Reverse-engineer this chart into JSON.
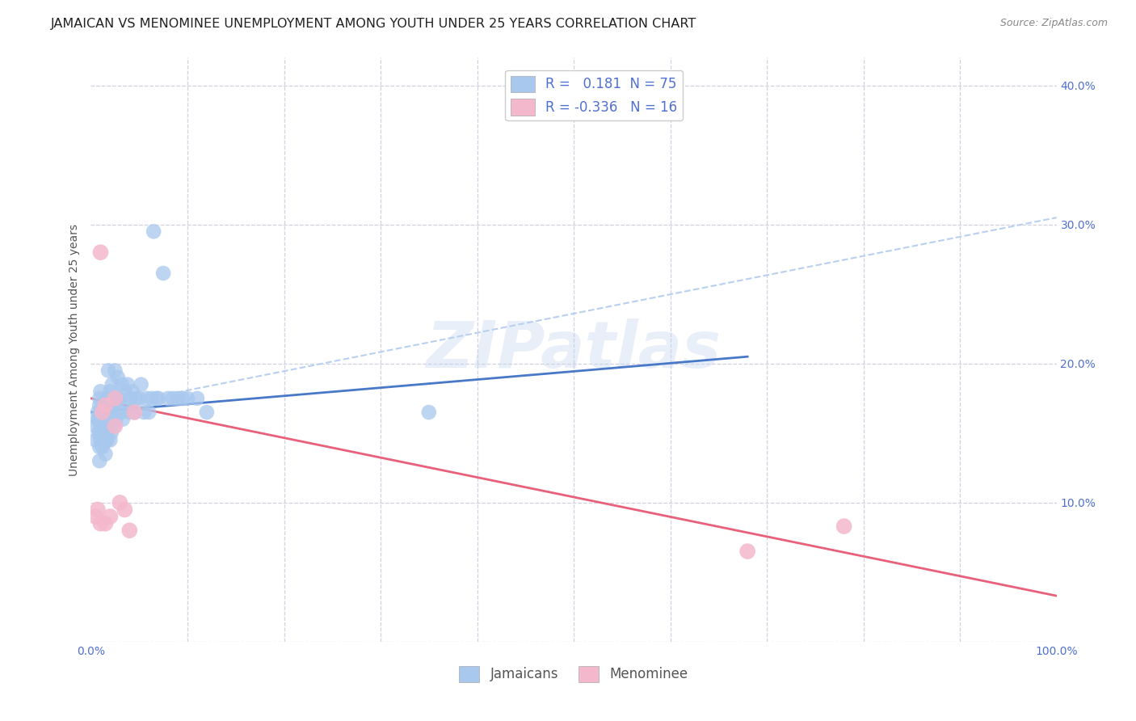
{
  "title": "JAMAICAN VS MENOMINEE UNEMPLOYMENT AMONG YOUTH UNDER 25 YEARS CORRELATION CHART",
  "source": "Source: ZipAtlas.com",
  "ylabel": "Unemployment Among Youth under 25 years",
  "watermark": "ZIPatlas",
  "xlim": [
    0.0,
    1.0
  ],
  "ylim": [
    0.0,
    0.42
  ],
  "xticks": [
    0.0,
    0.1,
    0.2,
    0.3,
    0.4,
    0.5,
    0.6,
    0.7,
    0.8,
    0.9,
    1.0
  ],
  "xticklabels": [
    "0.0%",
    "",
    "",
    "",
    "",
    "",
    "",
    "",
    "",
    "",
    "100.0%"
  ],
  "yticks": [
    0.0,
    0.1,
    0.2,
    0.3,
    0.4
  ],
  "yticklabels": [
    "",
    "10.0%",
    "20.0%",
    "30.0%",
    "40.0%"
  ],
  "legend_blue_label": "R =   0.181  N = 75",
  "legend_pink_label": "R = -0.336   N = 16",
  "blue_color": "#a8c8ee",
  "pink_color": "#f4b8cc",
  "blue_line_color": "#4878c8",
  "pink_line_color": "#e8607a",
  "dashed_line_color": "#b8d0f0",
  "jamaicans_x": [
    0.005,
    0.005,
    0.007,
    0.007,
    0.008,
    0.008,
    0.009,
    0.009,
    0.009,
    0.009,
    0.01,
    0.01,
    0.01,
    0.01,
    0.01,
    0.012,
    0.012,
    0.012,
    0.013,
    0.013,
    0.015,
    0.015,
    0.015,
    0.015,
    0.016,
    0.016,
    0.017,
    0.017,
    0.018,
    0.018,
    0.019,
    0.02,
    0.02,
    0.02,
    0.021,
    0.021,
    0.022,
    0.022,
    0.023,
    0.024,
    0.025,
    0.025,
    0.026,
    0.027,
    0.028,
    0.03,
    0.031,
    0.032,
    0.033,
    0.035,
    0.037,
    0.038,
    0.04,
    0.041,
    0.043,
    0.045,
    0.047,
    0.05,
    0.052,
    0.055,
    0.058,
    0.06,
    0.063,
    0.065,
    0.068,
    0.07,
    0.075,
    0.08,
    0.085,
    0.09,
    0.095,
    0.1,
    0.11,
    0.12,
    0.35
  ],
  "jamaicans_y": [
    0.145,
    0.155,
    0.16,
    0.165,
    0.15,
    0.16,
    0.13,
    0.14,
    0.17,
    0.175,
    0.145,
    0.15,
    0.155,
    0.165,
    0.18,
    0.14,
    0.15,
    0.16,
    0.155,
    0.165,
    0.135,
    0.145,
    0.155,
    0.165,
    0.15,
    0.17,
    0.145,
    0.175,
    0.155,
    0.195,
    0.16,
    0.145,
    0.165,
    0.18,
    0.15,
    0.17,
    0.165,
    0.185,
    0.175,
    0.155,
    0.165,
    0.195,
    0.16,
    0.175,
    0.19,
    0.175,
    0.165,
    0.185,
    0.16,
    0.18,
    0.17,
    0.185,
    0.165,
    0.175,
    0.18,
    0.165,
    0.175,
    0.175,
    0.185,
    0.165,
    0.175,
    0.165,
    0.175,
    0.295,
    0.175,
    0.175,
    0.265,
    0.175,
    0.175,
    0.175,
    0.175,
    0.175,
    0.175,
    0.165,
    0.165
  ],
  "menominee_x": [
    0.005,
    0.007,
    0.01,
    0.01,
    0.012,
    0.015,
    0.015,
    0.02,
    0.025,
    0.025,
    0.03,
    0.035,
    0.04,
    0.045,
    0.68,
    0.78
  ],
  "menominee_y": [
    0.09,
    0.095,
    0.085,
    0.28,
    0.165,
    0.17,
    0.085,
    0.09,
    0.155,
    0.175,
    0.1,
    0.095,
    0.08,
    0.165,
    0.065,
    0.083
  ],
  "blue_line_x": [
    0.0,
    0.68
  ],
  "blue_line_y": [
    0.165,
    0.205
  ],
  "pink_line_x": [
    0.0,
    1.0
  ],
  "pink_line_y": [
    0.175,
    0.033
  ],
  "dashed_line_x": [
    0.08,
    1.0
  ],
  "dashed_line_y": [
    0.178,
    0.305
  ],
  "grid_color": "#d0d0e0",
  "bg_color": "#ffffff",
  "title_fontsize": 11.5,
  "label_fontsize": 10,
  "tick_fontsize": 10,
  "tick_color": "#5070d0",
  "legend_fontsize": 12,
  "source_fontsize": 9
}
